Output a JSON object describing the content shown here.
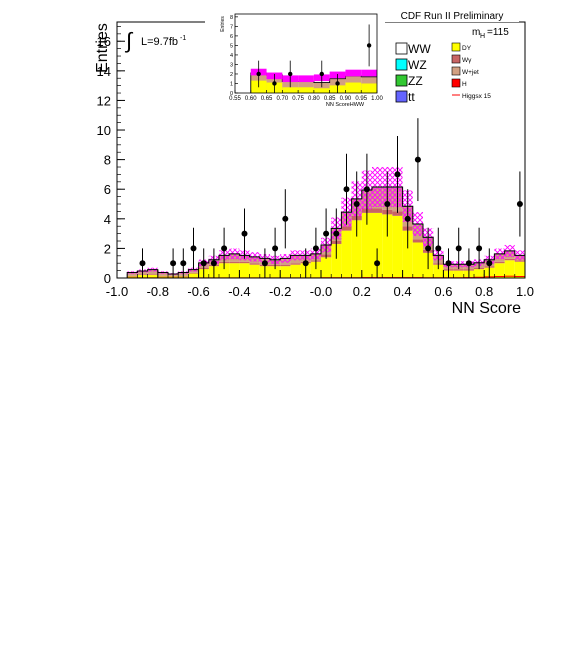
{
  "header": "CDF Run II Preliminary",
  "lumi_text": "L=9.7fb",
  "lumi_sup": "-1",
  "mass_text": "m",
  "mass_sub": "H",
  "mass_value": "=115",
  "chart_data": {
    "type": "bar",
    "xlabel": "NN Score",
    "ylabel": "Entries",
    "xlim": [
      -1.0,
      1.0
    ],
    "ylim": [
      0,
      17.3
    ],
    "x_ticks": [
      "-1.0",
      "-0.8",
      "-0.6",
      "-0.4",
      "-0.2",
      "-0.0",
      "0.2",
      "0.4",
      "0.6",
      "0.8",
      "1.0"
    ],
    "y_ticks": [
      "0",
      "2",
      "4",
      "6",
      "8",
      "10",
      "12",
      "14",
      "16"
    ],
    "bin_width": 0.05,
    "bin_edges": [
      -0.95,
      -0.9,
      -0.85,
      -0.8,
      -0.75,
      -0.7,
      -0.65,
      -0.6,
      -0.55,
      -0.5,
      -0.45,
      -0.4,
      -0.35,
      -0.3,
      -0.25,
      -0.2,
      -0.15,
      -0.1,
      -0.05,
      0.0,
      0.05,
      0.1,
      0.15,
      0.2,
      0.25,
      0.3,
      0.35,
      0.4,
      0.45,
      0.5,
      0.55,
      0.6,
      0.65,
      0.7,
      0.75,
      0.8,
      0.85,
      0.9,
      0.95
    ],
    "series": [
      {
        "name": "DY",
        "color": "#ffff00",
        "values": [
          0.1,
          0.2,
          0.2,
          0.1,
          0.1,
          0.1,
          0.3,
          0.6,
          0.8,
          1.0,
          1.0,
          1.0,
          0.9,
          0.8,
          0.8,
          0.8,
          0.9,
          1.0,
          1.1,
          1.4,
          2.3,
          3.2,
          3.9,
          4.4,
          4.4,
          4.3,
          4.2,
          3.2,
          2.4,
          1.7,
          0.9,
          0.5,
          0.5,
          0.5,
          0.6,
          0.7,
          1.0,
          1.2,
          1.1
        ]
      },
      {
        "name": "Wγ",
        "color": "#c86464",
        "values": [
          0.05,
          0.05,
          0.05,
          0.05,
          0.05,
          0.05,
          0.05,
          0.1,
          0.1,
          0.1,
          0.1,
          0.1,
          0.1,
          0.1,
          0.1,
          0.1,
          0.1,
          0.1,
          0.1,
          0.2,
          0.2,
          0.3,
          0.3,
          0.3,
          0.3,
          0.3,
          0.3,
          0.3,
          0.2,
          0.2,
          0.1,
          0.1,
          0.1,
          0.1,
          0.1,
          0.1,
          0.1,
          0.1,
          0.1
        ]
      },
      {
        "name": "W+jet",
        "color": "#d2a082",
        "values": [
          0.2,
          0.2,
          0.3,
          0.2,
          0.1,
          0.2,
          0.2,
          0.3,
          0.3,
          0.4,
          0.5,
          0.4,
          0.4,
          0.4,
          0.3,
          0.4,
          0.5,
          0.4,
          0.4,
          0.6,
          0.8,
          0.9,
          1.1,
          1.2,
          1.4,
          1.5,
          1.6,
          1.3,
          1.0,
          0.8,
          0.5,
          0.3,
          0.3,
          0.3,
          0.3,
          0.4,
          0.5,
          0.5,
          0.3
        ]
      },
      {
        "name": "ZZ",
        "color": "#32c832",
        "values": [
          0.02,
          0.02,
          0.02,
          0.02,
          0.02,
          0.02,
          0.02,
          0.02,
          0.03,
          0.03,
          0.03,
          0.03,
          0.03,
          0.03,
          0.03,
          0.03,
          0.03,
          0.03,
          0.03,
          0.03,
          0.05,
          0.05,
          0.05,
          0.05,
          0.05,
          0.05,
          0.05,
          0.05,
          0.05,
          0.05,
          0.03,
          0.03,
          0.03,
          0.03,
          0.03,
          0.03,
          0.03,
          0.03,
          0.03
        ]
      }
    ],
    "signal": {
      "name": "Higgsx 15",
      "color": "#ff0000",
      "values": [
        0.01,
        0.01,
        0.01,
        0.01,
        0.01,
        0.01,
        0.01,
        0.01,
        0.01,
        0.01,
        0.01,
        0.01,
        0.01,
        0.01,
        0.01,
        0.01,
        0.01,
        0.01,
        0.01,
        0.02,
        0.02,
        0.02,
        0.02,
        0.03,
        0.03,
        0.03,
        0.03,
        0.03,
        0.03,
        0.02,
        0.02,
        0.02,
        0.02,
        0.03,
        0.05,
        0.08,
        0.1,
        0.12,
        0.1
      ]
    },
    "uncertainty_color": "#ff00ff",
    "uncertainty_fraction": 0.22,
    "data_points": {
      "x": [
        -0.875,
        -0.725,
        -0.675,
        -0.625,
        -0.575,
        -0.525,
        -0.475,
        -0.375,
        -0.275,
        -0.225,
        -0.175,
        -0.075,
        -0.025,
        0.025,
        0.075,
        0.125,
        0.175,
        0.225,
        0.275,
        0.325,
        0.375,
        0.425,
        0.475,
        0.525,
        0.575,
        0.625,
        0.675,
        0.725,
        0.775,
        0.825,
        0.975
      ],
      "y": [
        1,
        1,
        1,
        2,
        1,
        1,
        2,
        3,
        1,
        2,
        4,
        1,
        2,
        3,
        3,
        6,
        5,
        6,
        1,
        5,
        7,
        4,
        8,
        2,
        2,
        1,
        2,
        1,
        2,
        1,
        5
      ],
      "err": [
        1.0,
        1.0,
        1.0,
        1.4,
        1.0,
        1.0,
        1.4,
        1.7,
        1.0,
        1.4,
        2.0,
        1.0,
        1.4,
        1.7,
        1.7,
        2.4,
        2.2,
        2.4,
        1.0,
        2.2,
        2.6,
        2.0,
        2.8,
        1.4,
        1.4,
        1.0,
        1.4,
        1.0,
        1.4,
        1.0,
        2.2
      ]
    },
    "legend": {
      "placement": "top-right",
      "left_entries": [
        {
          "label": "WW",
          "color": "#ffffff"
        },
        {
          "label": "WZ",
          "color": "#00ffff"
        },
        {
          "label": "ZZ",
          "color": "#32c832"
        },
        {
          "label": "tt",
          "color": "#6464ff"
        }
      ],
      "right_entries": [
        {
          "label": "DY",
          "color": "#ffff00"
        },
        {
          "label": "Wγ",
          "color": "#c86464"
        },
        {
          "label": "W+jet",
          "color": "#d2a082"
        },
        {
          "label": "H",
          "color": "#ff0000"
        },
        {
          "label": "Higgsx 15",
          "color": "#ff0000",
          "line": true
        }
      ]
    },
    "inset": {
      "xlabel": "NN ScoreHWW",
      "ylabel": "Entries",
      "xlim": [
        0.55,
        1.0
      ],
      "ylim": [
        0,
        8.3
      ],
      "x_ticks": [
        "0.55",
        "0.60",
        "0.65",
        "0.70",
        "0.75",
        "0.80",
        "0.85",
        "0.90",
        "0.95",
        "1.00"
      ],
      "y_ticks": [
        "0",
        "1",
        "2",
        "3",
        "4",
        "5",
        "6",
        "7",
        "8"
      ],
      "bin_edges": [
        0.6,
        0.65,
        0.7,
        0.75,
        0.8,
        0.85,
        0.9,
        0.95
      ],
      "bin_width": 0.05,
      "bkg_values": [
        2.1,
        1.9,
        1.2,
        1.2,
        1.1,
        1.5,
        1.8,
        1.7
      ],
      "dy_values": [
        1.3,
        1.1,
        0.6,
        0.6,
        0.5,
        0.8,
        1.1,
        1.0
      ],
      "unc_values": [
        2.2,
        1.8,
        1.5,
        1.5,
        1.6,
        1.9,
        2.1,
        2.1
      ],
      "data_points": {
        "x": [
          0.625,
          0.675,
          0.725,
          0.825,
          0.875,
          0.975
        ],
        "y": [
          2,
          1,
          2,
          2,
          1,
          5
        ],
        "err": [
          1.4,
          1.0,
          1.4,
          1.4,
          1.0,
          2.2
        ]
      }
    }
  }
}
